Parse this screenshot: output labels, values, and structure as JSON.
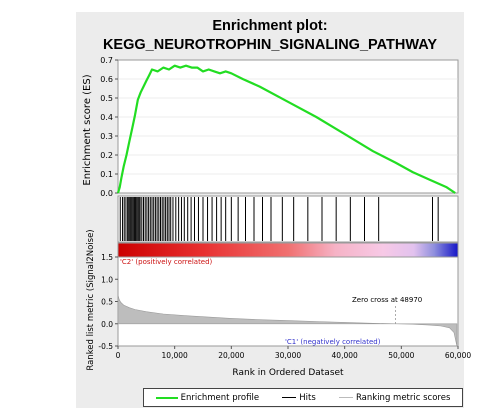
{
  "chart_data": {
    "type": "line",
    "title": "Enrichment plot:",
    "subtitle": "KEGG_NEUROTROPHIN_SIGNALING_PATHWAY",
    "es_panel": {
      "ylabel": "Enrichment score (ES)",
      "ylim": [
        0.0,
        0.7
      ],
      "yticks": [
        "0.0",
        "0.1",
        "0.2",
        "0.3",
        "0.4",
        "0.5",
        "0.6",
        "0.7"
      ],
      "series": [
        {
          "color": "#22dd22",
          "x": [
            0,
            300,
            600,
            1000,
            1500,
            2000,
            2500,
            3000,
            3500,
            4000,
            4500,
            5000,
            5500,
            6000,
            7000,
            8000,
            9000,
            10000,
            11000,
            12000,
            13000,
            14000,
            15000,
            16000,
            17000,
            18000,
            19000,
            20000,
            22000,
            25000,
            30000,
            35000,
            40000,
            45000,
            48970,
            52000,
            55000,
            58000,
            59500
          ],
          "y": [
            0.0,
            0.03,
            0.08,
            0.14,
            0.2,
            0.27,
            0.34,
            0.41,
            0.49,
            0.53,
            0.56,
            0.59,
            0.62,
            0.65,
            0.64,
            0.66,
            0.65,
            0.67,
            0.66,
            0.67,
            0.66,
            0.66,
            0.64,
            0.65,
            0.64,
            0.63,
            0.64,
            0.63,
            0.6,
            0.56,
            0.48,
            0.4,
            0.31,
            0.22,
            0.16,
            0.11,
            0.07,
            0.03,
            0.0
          ]
        }
      ]
    },
    "hits": [
      400,
      800,
      1100,
      1400,
      1700,
      1900,
      2100,
      2300,
      2500,
      2700,
      2900,
      3100,
      3300,
      3500,
      3700,
      3900,
      4200,
      4500,
      4800,
      5100,
      5400,
      5700,
      6000,
      6300,
      6600,
      6900,
      7200,
      7500,
      7800,
      8100,
      8400,
      8700,
      9000,
      9300,
      9700,
      10200,
      10700,
      11200,
      11700,
      12300,
      12900,
      13500,
      14200,
      15000,
      15800,
      16600,
      17400,
      18200,
      19000,
      20000,
      21200,
      22500,
      24000,
      25500,
      27000,
      29000,
      31000,
      33500,
      36000,
      38500,
      41000,
      43500,
      46000,
      55500,
      56500
    ],
    "gradient_labels": {
      "positive": "'C2' (positively correlated)",
      "negative": "'C1' (negatively correlated)"
    },
    "metric_panel": {
      "ylabel": "Ranked list metric (Signal2Noise)",
      "ylim": [
        -0.5,
        1.5
      ],
      "yticks": [
        "-0.5",
        "0.0",
        "0.5",
        "1.0",
        "1.5"
      ],
      "zero_cross_label": "Zero cross at 48970",
      "zero_cross": 48970,
      "x": [
        0,
        200,
        500,
        1000,
        2000,
        3000,
        5000,
        8000,
        12000,
        16000,
        20000,
        25000,
        30000,
        35000,
        40000,
        45000,
        48970,
        52000,
        55000,
        57000,
        58500,
        59300,
        59800
      ],
      "values": [
        0.65,
        0.55,
        0.48,
        0.42,
        0.36,
        0.32,
        0.27,
        0.22,
        0.18,
        0.15,
        0.12,
        0.09,
        0.07,
        0.05,
        0.03,
        0.01,
        0.0,
        -0.01,
        -0.03,
        -0.05,
        -0.09,
        -0.2,
        -0.5
      ]
    },
    "xlabel": "Rank in Ordered Dataset",
    "xlim": [
      0,
      60000
    ],
    "xticks": [
      "0",
      "10,000",
      "20,000",
      "30,000",
      "40,000",
      "50,000",
      "60,000"
    ],
    "legend": {
      "position": "bottom",
      "items": [
        {
          "label": "Enrichment profile",
          "color": "#22dd22"
        },
        {
          "label": "Hits",
          "color": "#000000"
        },
        {
          "label": "Ranking metric scores",
          "color": "#bbbbbb"
        }
      ]
    }
  }
}
